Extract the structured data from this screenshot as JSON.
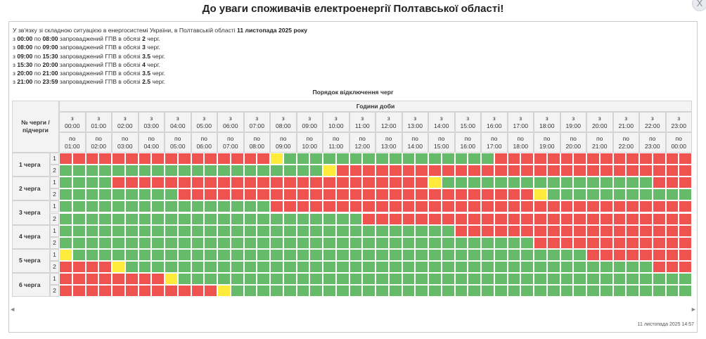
{
  "header": {
    "title": "До уваги споживачів електроенергії Полтавської області!",
    "close_label": "X"
  },
  "info": {
    "intro_prefix": "У зв'язку зі складною ситуацією в енергосистемі України, в Полтавській області ",
    "intro_date": "11 листопада 2025 року",
    "lines": [
      {
        "from": "з",
        "start": "00:00",
        "by": "по",
        "end": "08:00",
        "text": "запроваджений ГПВ в обсязі",
        "amount": "2",
        "unit": "черг."
      },
      {
        "from": "з",
        "start": "08:00",
        "by": "по",
        "end": "09:00",
        "text": "запроваджений ГПВ в обсязі",
        "amount": "3",
        "unit": "черг."
      },
      {
        "from": "з",
        "start": "09:00",
        "by": "по",
        "end": "15:30",
        "text": "запроваджений ГПВ в обсязі",
        "amount": "3.5",
        "unit": "черг."
      },
      {
        "from": "з",
        "start": "15:30",
        "by": "по",
        "end": "20:00",
        "text": "запроваджений ГПВ в обсязі",
        "amount": "4",
        "unit": "черг."
      },
      {
        "from": "з",
        "start": "20:00",
        "by": "по",
        "end": "21:00",
        "text": "запроваджений ГПВ в обсязі",
        "amount": "3.5",
        "unit": "черг."
      },
      {
        "from": "з",
        "start": "21:00",
        "by": "по",
        "end": "23:59",
        "text": "запроваджений ГПВ в обсязі",
        "amount": "2.5",
        "unit": "черг."
      }
    ]
  },
  "schedule": {
    "title": "Порядок відключення черг",
    "queue_header": "№ черги / підчерги",
    "hours_header": "Години доби",
    "from_word": "з",
    "to_word": "по",
    "hours_from": [
      "00:00",
      "01:00",
      "02:00",
      "03:00",
      "04:00",
      "05:00",
      "06:00",
      "07:00",
      "08:00",
      "09:00",
      "10:00",
      "11:00",
      "12:00",
      "13:00",
      "14:00",
      "15:00",
      "16:00",
      "17:00",
      "18:00",
      "19:00",
      "20:00",
      "21:00",
      "22:00",
      "23:00"
    ],
    "hours_to": [
      "01:00",
      "02:00",
      "03:00",
      "04:00",
      "05:00",
      "06:00",
      "07:00",
      "08:00",
      "09:00",
      "10:00",
      "11:00",
      "12:00",
      "13:00",
      "14:00",
      "15:00",
      "16:00",
      "17:00",
      "18:00",
      "19:00",
      "20:00",
      "21:00",
      "22:00",
      "23:00",
      "00:00"
    ],
    "queues": [
      {
        "label": "1 черга",
        "subs": [
          "1",
          "2"
        ]
      },
      {
        "label": "2 черга",
        "subs": [
          "1",
          "2"
        ]
      },
      {
        "label": "3 черга",
        "subs": [
          "1",
          "2"
        ]
      },
      {
        "label": "4 черга",
        "subs": [
          "1",
          "2"
        ]
      },
      {
        "label": "5 черга",
        "subs": [
          "1",
          "2"
        ]
      },
      {
        "label": "6 черга",
        "subs": [
          "1",
          "2"
        ]
      }
    ],
    "legend_colors": {
      "R": "#ef5350",
      "G": "#66bb6a",
      "Y": "#ffeb3b"
    },
    "rows": [
      "RRRRRRRRRRRRRRRRYGGGGGGGGGGGGGGGGRRRRRRRRRRRRRRRRRRRRRRRRRRRRRRRRRRRRRYGGGGGGGGGGGGGGGGRRRRRRRRRRRRRRRRRRRRRRRRRRRRRRRRRRRRRRRRRRRRRRRRRRRRRRRRRRYGGGGGGGGGGGGGGGGRRRRRRRRRRRRRRRRRRRRRRRRRRRRRRRRRRRRRYGGGGGGGGGGGG",
      "GGGGGGGGGGGGGGGGGGGGYRRRRRRRRRRRRRRRRRRRRRRRRRRRRRRRRRRRRRRRRRRRRRRRRRRRRRRYGGGGGGGGGGGGGGGGRRRRRRRRRRRRRRRRRRRRRRRRRRRRRRRRRRRRRRRRRRRRRRRRRRRRRRRRRRYGGGGGGGGGGGGGGGGRRRRRRRRRRRRRRRRRRRRRRRRRRRRRRRRRRRRRYGGGGGGGG",
      "GGGGRRRRRRRRRRRRRRRRRRRRRRRRYGGGGGGGGGGGGGGGGRRRRRRRRRRRRRRRRRRRRRRRRRRRRRRRRRRRRRRRRRRRRRRRRRRRRRRYGGGGGGGGGGGGGGGGRRRRRRRRRRRRRRRRRRRRRRRRRRRRRRRRRRRRRRRRRRRRRRRRRRRRRRRRRRYGGGGGGGGGGGGGGGGRRRRRRRRRRRRRRRRRRRRRRRRRRRRYGGGG",
      "GGGGGGGGGRRRRRRRRRRRRRRRRRRRRRRRRRRRYGGGGGGGGGGGGGGGGRRRRRRRRRRRRRRRRRRRRRRRRRRRRRRRRRRRRRRRRRRRRRRRRRRRRRRYGGGGGGGGGGGGGGGGRRRRRRRRRRRRRRRRRRRRRRRRRRRRRRRRRRRRRRRRRRRRRRRRRRRRRRRRRRYGGGGGGGGGGGGGGGGRRRRRRRRRRRRRRRRRRRRRRRRY",
      "GGGGGGGGGGGGGGGGRRRRRRRRRRRRRRRRRRRRRRRRRRRRRRRRRRRRRYGGGGGGGGGGGGGGGGRRRRRRRRRRRRRRRRRRRRRRRRRRRRRRRRRRRRRRRRRRRRRRRRRRRRRRYGGGGGGGGGGGGGGGGRRRRRRRRRRRRRRRRRRRRRRRRRRRRRRRRRRRRRRRRRRRRRRRRRRRRRRRRRRYGGGGGGGGGGGGGGGGRRRRRRRRRRRRRRRRRRRR",
      "GGGGGGGGGGGGGGGGGGGGGGGRRRRRRRRRRRRRRRRRRRRRRRRRRRRRRRRRRRRRRYGGGGGGGGGGGGGGGGRRRRRRRRRRRRRRRRRRRRRRRRRRRRRRRRRRRRRRRRRRRRRRRRRRRRRRYGGGGGGGGGGGGGGGGRRRRRRRRRRRRRRRRRRRRRRRRRRRRRRRRRRRRRRRRRRRRRRRRRRRRRRRRRRYGGGGGGGGGGGGGGGGRRRRRRRRRRRRR",
      "GGGGGGGGGGGGGGGGGGGGGGGGGGGGGGRRRRRRRRRRRRRRRRRRRRRRRRRRRRRRRRRRRRRRRYGGGGGGGGGGGGGGGGRRRRRRRRRRRRRRRRRRRRRRRRRRRRRRRRRRRRRRRRRRRRRRRRRRRRRRYGGGGGGGGGGGGGGGGRRRRRRRRRRRRRRRRRRRRRRRRRRRRRRRRRRRRRRRRRRRRRRRRRRRRRRRRRRYGGGGGGGGGGGGYGGGGRRRRRRR",
      "GGGGGGGGGGGGGGGGGGGGGGGGGGGGGGGGGGGGRRRRRRRRRRRRRRRRRRRRRRRRRRRRRRRRRRRRRYGGGGGGGGGGGGGGGGRRRRRRRRRRRRRRRRRRRRRRRRRRRRRRRRRRRRRRRRRRRRRRRRRRRRRRYGGGGGGGGGGGGGGGGRRRRRRRRRRRRRRRRRRRRRRRRRRRRRRRRRRRRRRRRRRRRRRRRRRRRRRRRRRYGGGGGGGGYRRRR",
      "YGGGGGGGGGGGGGGGGGGGGGGGGGGGGGGGGGGGGGGGRRRRRRRRRRRRRRRRRRRRRRRRRRRRRRRRRRRRRYGGGGGGGGGGGGGGGGRRRRRRRRRRRRRRRRRRRRRRRRRRRRRRRRRRRRRRRRRRRRRRRRRRRRRRYGGGGGGGGGGGGGGGGRRRRRRRRRRRRRRRRRRRRRRRRRRRRRRRRRRRRRRRRRRRRRRRRRRRRRRRRRYGGGGYGGGG",
      "RRRRYGGGGGGGGGGGGGGGGGGGGGGGGGGGGGGGGGGGGGGGGRRRRRRRRRRRRRRRRRRRRRRRRRRRRRRRRRRRRRYGGGGGGGGGGGGGGGGRRRRRRRRRRRRRRRRRRRRRRRRRRRRRRRRRRRRRRRRRRRRRRRRRRRRRRYGGGGGGGGGGGGGGGGRRRRRRRRRRRRRRRRRRRRRRRRRRRRRRRRRRRRRRRRRRRRRRRRRRRRYYGGGGG",
      "RRRRRRRRYGGGGGGGGGGGGGGGGGGGGGGGGGGGGGGGGGGGGGGGRRRRRRRRRRRRRRRRRRRRRRRRRRRRRRRRRRRRRRYGGGGGGGGGGGGGGGGRRRRRRRRRRRRRRRRRRRRRRRRRRRRRRRRRRRRRRRRRRRRRRRRRRRRRRYGGGGGGGGGGGGGGGGRRRRRRRRRRRRRRRRRRRRRRRRRRRRRRRRRRRRRRRRRRRRRRRRYGGGGG",
      "RRRRRRRRRRRRYGGGGGGGGGGGGGGGGGGGGGGGGGGGGGGGGGGGGGGGRRRRRRRRRRRRRRRRRRRRRRRRRRRRRRRRRRRRRRYGGGGGGGGGGGGGGGGRRRRRRRRRRRRRRRRRRRRRRRRRRRRRRRRRRRRRRRRRRRRRRRRRRRRRRYGGGGGGGGGGGGGGGGRRRRRRRRRRRRRRRRRRRRRRRRRRRRRRRRRRRRRRRRRRRRRYGGGGG"
    ]
  },
  "footer": {
    "timestamp": "11 листопада 2025 14:57"
  },
  "scroll": {
    "left_arrow": "◀",
    "right_arrow": "▶"
  }
}
